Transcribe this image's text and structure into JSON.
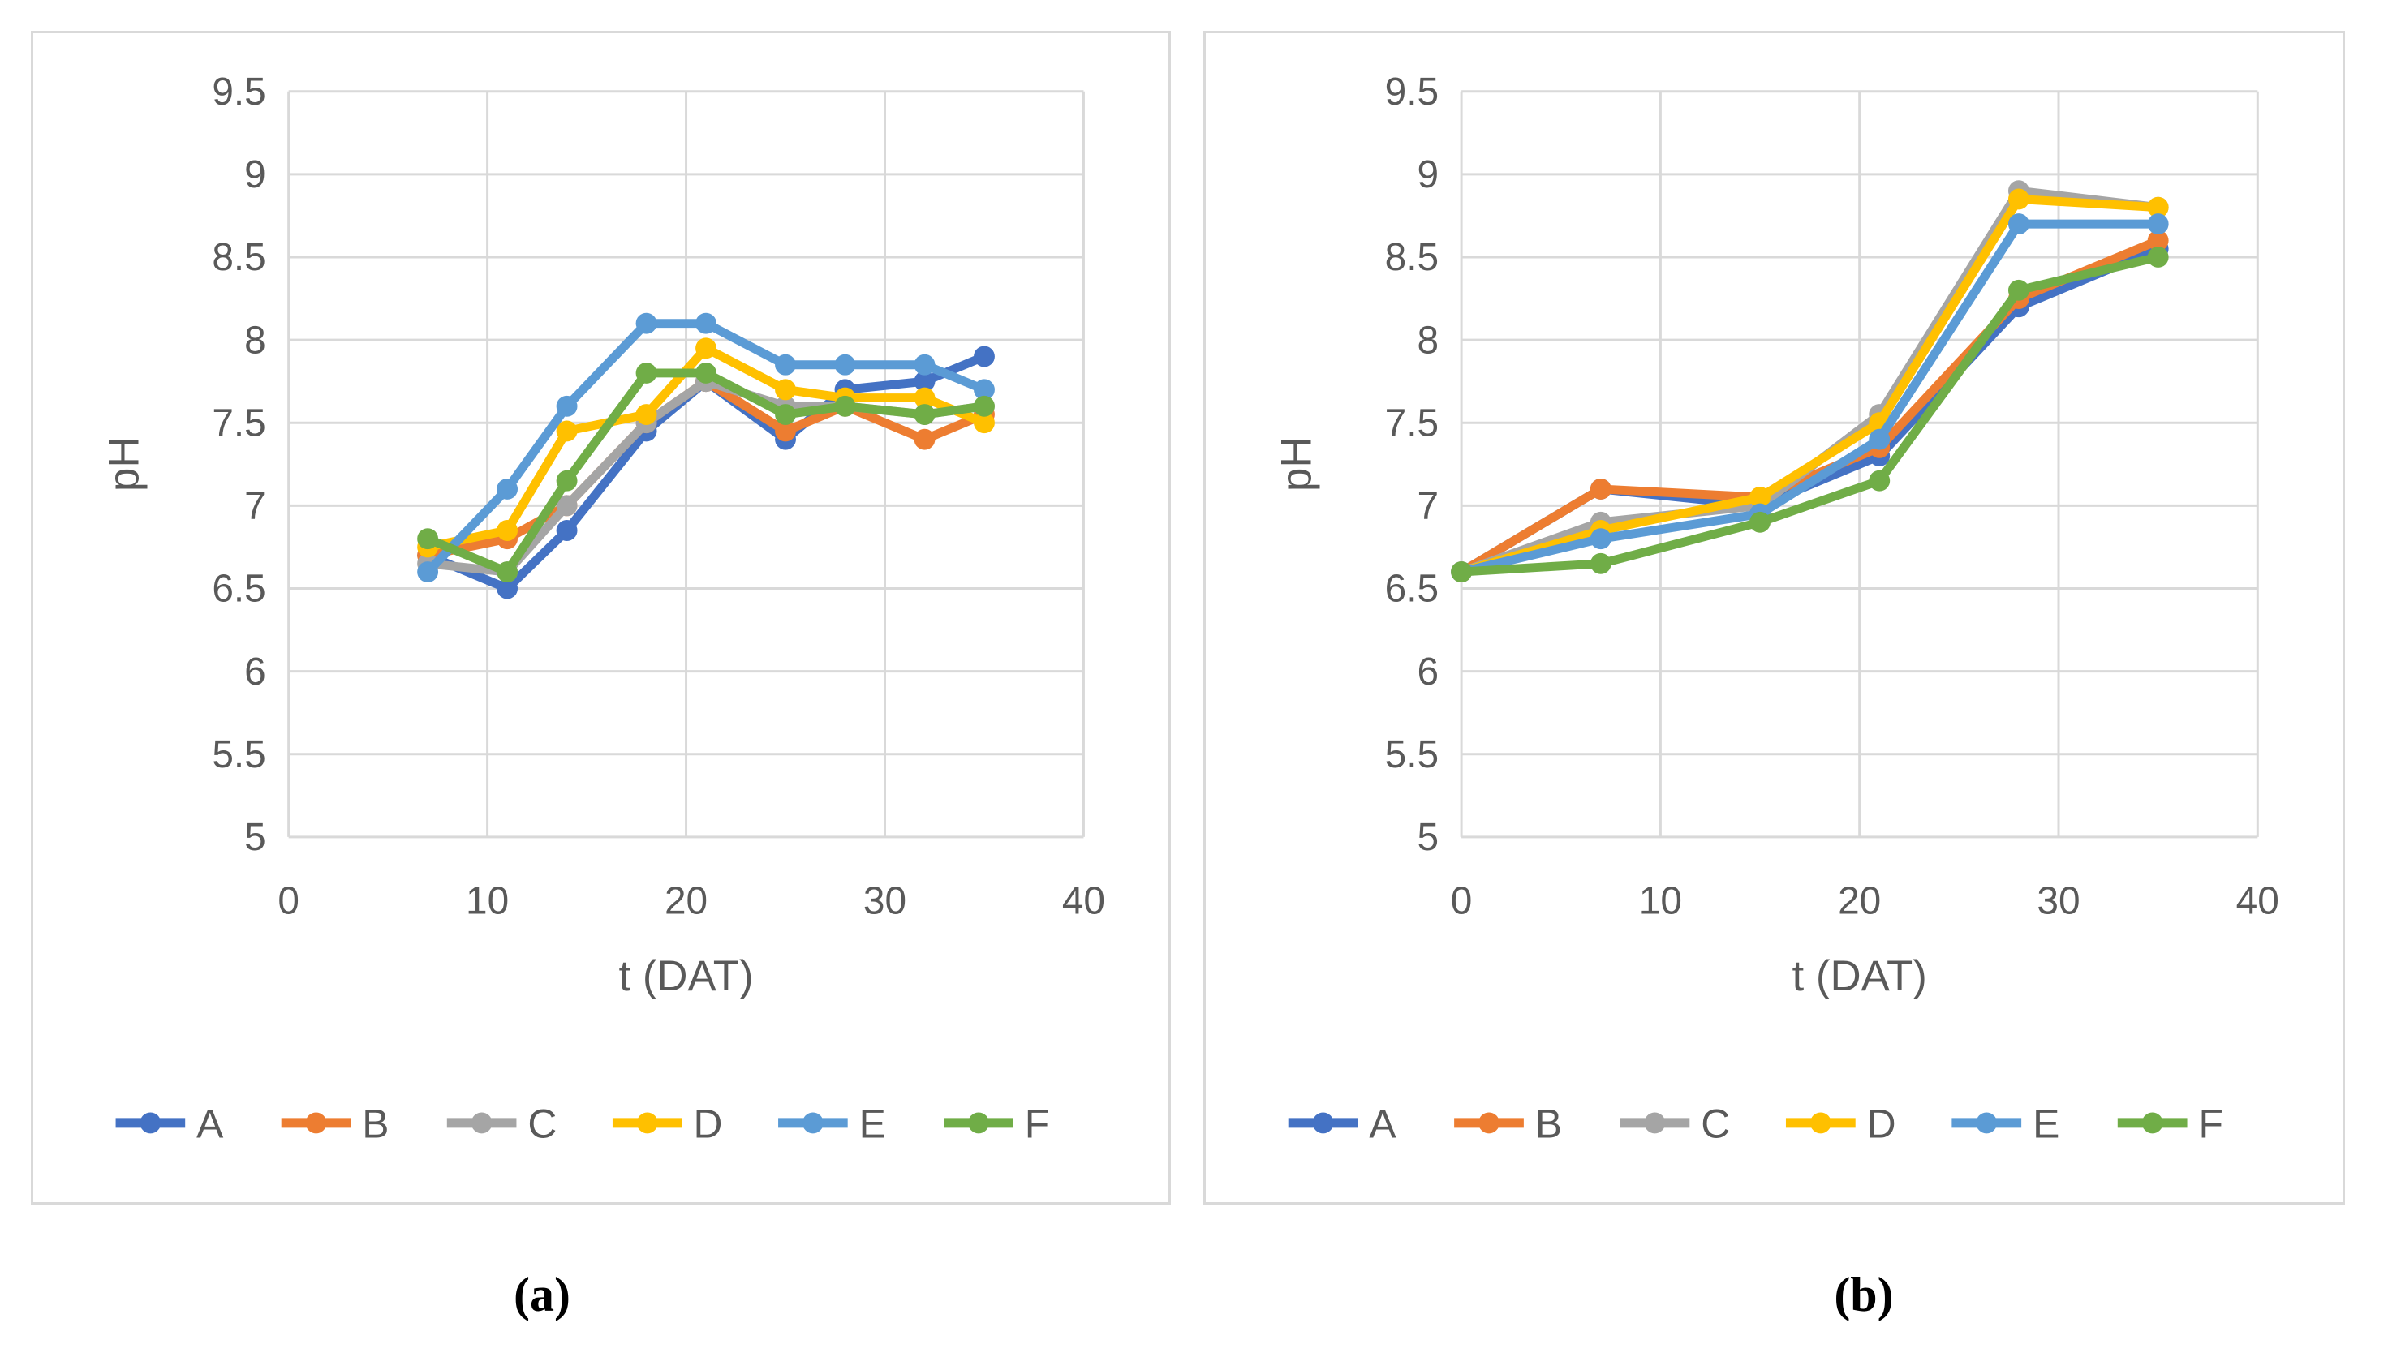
{
  "page": {
    "background": "#ffffff"
  },
  "colors": {
    "axis_text": "#595959",
    "gridline": "#d9d9d9",
    "panel_border": "#d9d9d9",
    "series": {
      "A": "#4472C4",
      "B": "#ED7D31",
      "C": "#A5A5A5",
      "D": "#FFC000",
      "E": "#5B9BD5",
      "F": "#70AD47"
    }
  },
  "captions": {
    "a": "(a)",
    "b": "(b)"
  },
  "legend": {
    "labels": [
      "A",
      "B",
      "C",
      "D",
      "E",
      "F"
    ],
    "position": "bottom"
  },
  "chart_data": [
    {
      "type": "line",
      "panel": "a",
      "title": "",
      "xlabel": "t (DAT)",
      "ylabel": "pH",
      "xlim": [
        0,
        40
      ],
      "ylim": [
        5,
        9.5
      ],
      "x_ticks": [
        0,
        10,
        20,
        30,
        40
      ],
      "y_ticks": [
        9.5,
        9,
        8.5,
        8,
        7.5,
        7,
        6.5,
        6,
        5.5,
        5
      ],
      "grid": true,
      "legend_position": "bottom",
      "x": [
        7,
        11,
        14,
        18,
        21,
        25,
        28,
        32,
        35
      ],
      "series": [
        {
          "name": "A",
          "values": [
            6.7,
            6.5,
            6.85,
            7.45,
            7.75,
            7.4,
            7.7,
            7.75,
            7.9
          ]
        },
        {
          "name": "B",
          "values": [
            6.7,
            6.8,
            7.0,
            7.5,
            7.75,
            7.45,
            7.6,
            7.4,
            7.55
          ]
        },
        {
          "name": "C",
          "values": [
            6.65,
            6.6,
            7.0,
            7.5,
            7.75,
            7.6,
            7.6,
            7.55,
            7.6
          ]
        },
        {
          "name": "D",
          "values": [
            6.75,
            6.85,
            7.45,
            7.55,
            7.95,
            7.7,
            7.65,
            7.65,
            7.5
          ]
        },
        {
          "name": "E",
          "values": [
            6.6,
            7.1,
            7.6,
            8.1,
            8.1,
            7.85,
            7.85,
            7.85,
            7.7
          ]
        },
        {
          "name": "F",
          "values": [
            6.8,
            6.6,
            7.15,
            7.8,
            7.8,
            7.55,
            7.6,
            7.55,
            7.6
          ]
        }
      ]
    },
    {
      "type": "line",
      "panel": "b",
      "title": "",
      "xlabel": "t (DAT)",
      "ylabel": "pH",
      "xlim": [
        0,
        40
      ],
      "ylim": [
        5,
        9.5
      ],
      "x_ticks": [
        0,
        10,
        20,
        30,
        40
      ],
      "y_ticks": [
        9.5,
        9,
        8.5,
        8,
        7.5,
        7,
        6.5,
        6,
        5.5,
        5
      ],
      "grid": true,
      "legend_position": "bottom",
      "x": [
        0,
        7,
        15,
        21,
        28,
        35
      ],
      "series": [
        {
          "name": "A",
          "values": [
            6.6,
            7.1,
            7.0,
            7.3,
            8.2,
            8.55
          ]
        },
        {
          "name": "B",
          "values": [
            6.6,
            7.1,
            7.05,
            7.35,
            8.25,
            8.6
          ]
        },
        {
          "name": "C",
          "values": [
            6.6,
            6.9,
            7.0,
            7.55,
            8.9,
            8.8
          ]
        },
        {
          "name": "D",
          "values": [
            6.6,
            6.85,
            7.05,
            7.5,
            8.85,
            8.8
          ]
        },
        {
          "name": "E",
          "values": [
            6.6,
            6.8,
            6.95,
            7.4,
            8.7,
            8.7
          ]
        },
        {
          "name": "F",
          "values": [
            6.6,
            6.65,
            6.9,
            7.15,
            8.3,
            8.5
          ]
        }
      ]
    }
  ]
}
